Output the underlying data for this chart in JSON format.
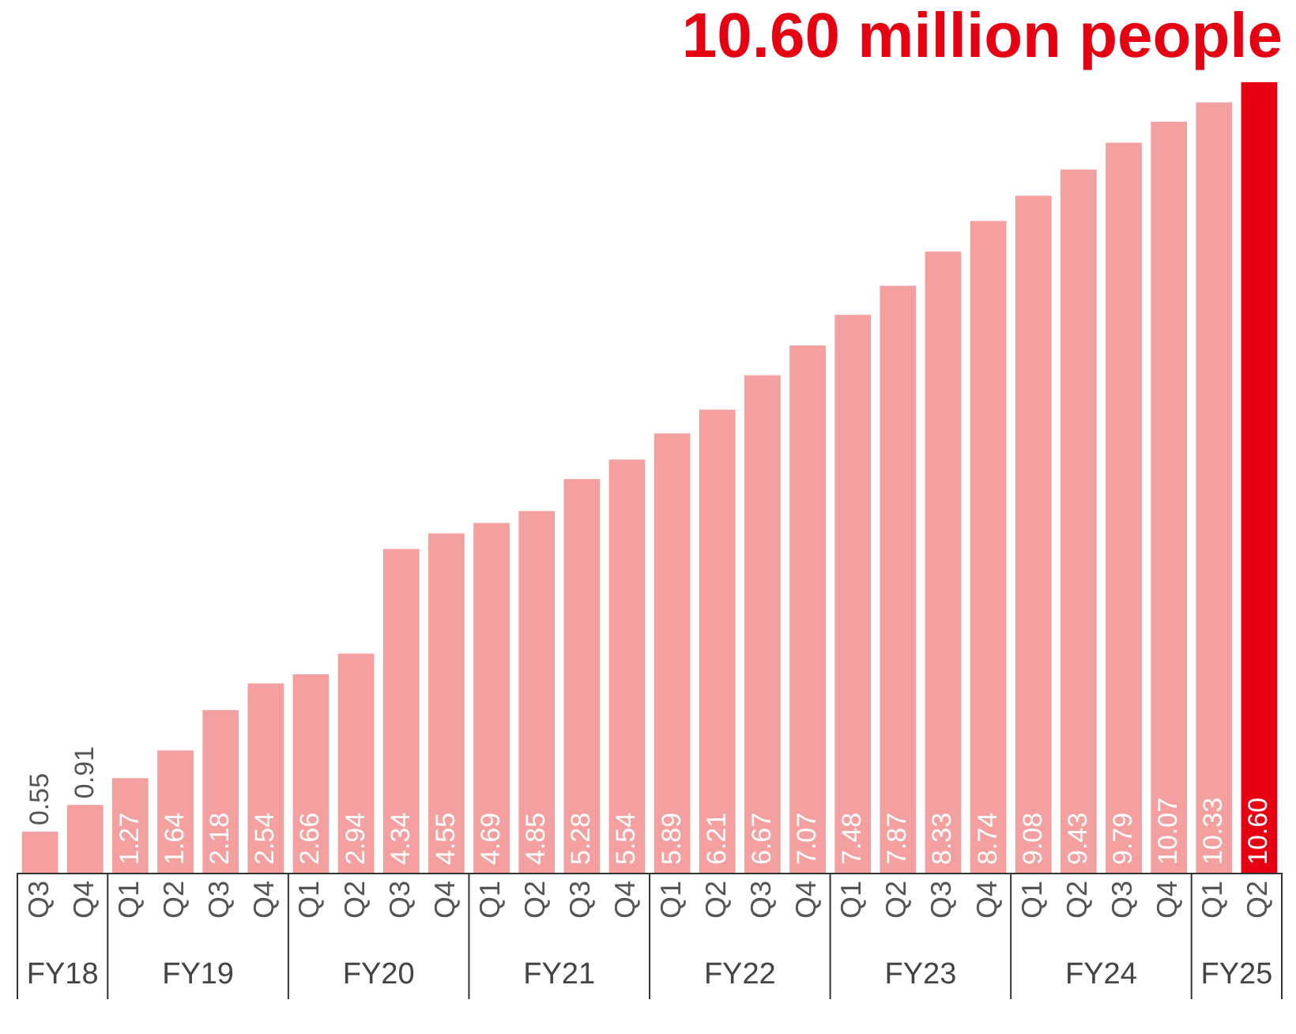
{
  "chart_data": {
    "type": "bar",
    "title": "10.60 million people",
    "categories": [
      "Q3",
      "Q4",
      "Q1",
      "Q2",
      "Q3",
      "Q4",
      "Q1",
      "Q2",
      "Q3",
      "Q4",
      "Q1",
      "Q2",
      "Q3",
      "Q4",
      "Q1",
      "Q2",
      "Q3",
      "Q4",
      "Q1",
      "Q2",
      "Q3",
      "Q4",
      "Q1",
      "Q2",
      "Q3",
      "Q4",
      "Q1",
      "Q2"
    ],
    "values": [
      0.55,
      0.91,
      1.27,
      1.64,
      2.18,
      2.54,
      2.66,
      2.94,
      4.34,
      4.55,
      4.69,
      4.85,
      5.28,
      5.54,
      5.89,
      6.21,
      6.67,
      7.07,
      7.48,
      7.87,
      8.33,
      8.74,
      9.08,
      9.43,
      9.79,
      10.07,
      10.33,
      10.6
    ],
    "value_labels": [
      "0.55",
      "0.91",
      "1.27",
      "1.64",
      "2.18",
      "2.54",
      "2.66",
      "2.94",
      "4.34",
      "4.55",
      "4.69",
      "4.85",
      "5.28",
      "5.54",
      "5.89",
      "6.21",
      "6.67",
      "7.07",
      "7.48",
      "7.87",
      "8.33",
      "8.74",
      "9.08",
      "9.43",
      "9.79",
      "10.07",
      "10.33",
      "10.60"
    ],
    "colors": [
      "#f5a0a0",
      "#f5a0a0",
      "#f5a0a0",
      "#f5a0a0",
      "#f5a0a0",
      "#f5a0a0",
      "#f5a0a0",
      "#f5a0a0",
      "#f5a0a0",
      "#f5a0a0",
      "#f5a0a0",
      "#f5a0a0",
      "#f5a0a0",
      "#f5a0a0",
      "#f5a0a0",
      "#f5a0a0",
      "#f5a0a0",
      "#f5a0a0",
      "#f5a0a0",
      "#f5a0a0",
      "#f5a0a0",
      "#f5a0a0",
      "#f5a0a0",
      "#f5a0a0",
      "#f5a0a0",
      "#f5a0a0",
      "#f5a0a0",
      "#e60012"
    ],
    "annotations": [
      "FY18",
      "FY19",
      "FY20",
      "FY21",
      "FY22",
      "FY23",
      "FY24",
      "FY25"
    ],
    "data_labels": true,
    "tick_labels": "x",
    "grid": false
  }
}
